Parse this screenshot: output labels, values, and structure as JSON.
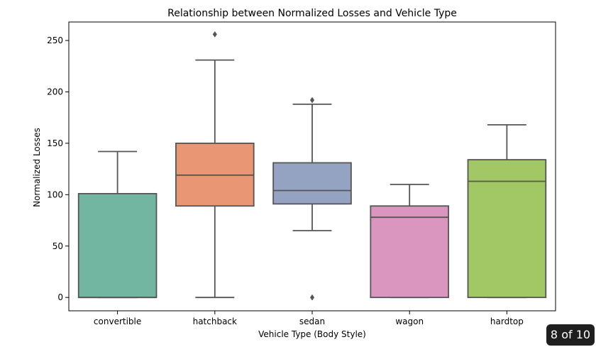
{
  "chart_data": {
    "type": "box",
    "title": "Relationship between Normalized Losses and Vehicle Type",
    "xlabel": "Vehicle Type (Body Style)",
    "ylabel": "Normalized Losses",
    "ylim": [
      -13,
      268
    ],
    "yticks": [
      0,
      50,
      100,
      150,
      200,
      250
    ],
    "ytick_labels": [
      "0",
      "50",
      "100",
      "150",
      "200",
      "250"
    ],
    "categories": [
      "convertible",
      "hatchback",
      "sedan",
      "wagon",
      "hardtop"
    ],
    "boxes": [
      {
        "category": "convertible",
        "whisker_low": 0,
        "q1": 0,
        "median": 0,
        "q3": 101,
        "whisker_high": 142,
        "outliers": [],
        "color": "#72b6a1"
      },
      {
        "category": "hatchback",
        "whisker_low": 0,
        "q1": 89,
        "median": 119,
        "q3": 150,
        "whisker_high": 231,
        "outliers": [
          256
        ],
        "color": "#e99675"
      },
      {
        "category": "sedan",
        "whisker_low": 65,
        "q1": 91,
        "median": 104,
        "q3": 131,
        "whisker_high": 188,
        "outliers": [
          192,
          0
        ],
        "color": "#95a3c3"
      },
      {
        "category": "wagon",
        "whisker_low": 0,
        "q1": 0,
        "median": 78,
        "q3": 89,
        "whisker_high": 110,
        "outliers": [],
        "color": "#db96c0"
      },
      {
        "category": "hardtop",
        "whisker_low": 0,
        "q1": 0,
        "median": 113,
        "q3": 134,
        "whisker_high": 168,
        "outliers": [],
        "color": "#a2c865"
      }
    ],
    "line_color": "#555555",
    "grid": false,
    "legend": "none"
  },
  "page_counter": "8 of 10"
}
